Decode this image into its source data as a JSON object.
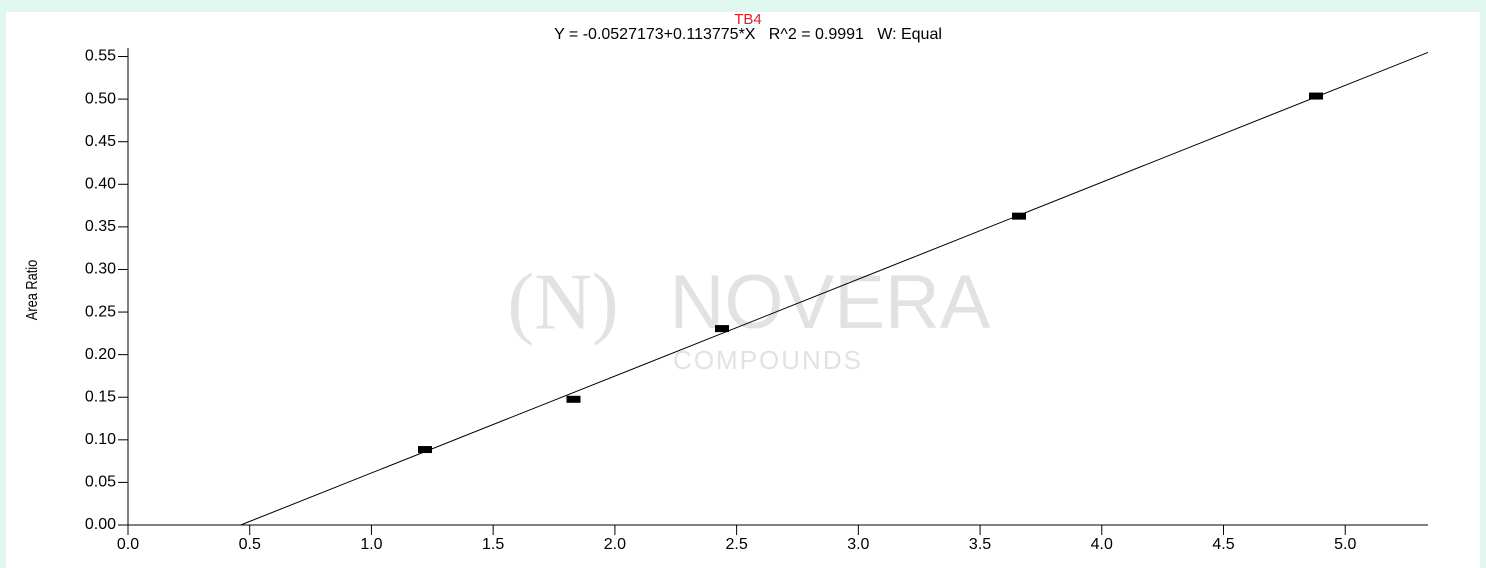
{
  "chart_data": {
    "type": "scatter",
    "title": "TB4",
    "subtitle": "Y = -0.0527173+0.113775*X   R^2 = 0.9991   W: Equal",
    "y_label": "Area Ratio",
    "watermark": {
      "mark": "(N)",
      "name": "NOVERA",
      "sub": "COMPOUNDS"
    },
    "x": [
      1.22,
      1.83,
      2.44,
      3.66,
      4.88
    ],
    "values": [
      0.088,
      0.147,
      0.23,
      0.362,
      0.503
    ],
    "color": "#000000",
    "fit_line": {
      "x": [
        0.463,
        5.34
      ],
      "values": [
        0,
        0.5548
      ],
      "color": "#000000"
    },
    "xlim": [
      0,
      5.34
    ],
    "ylim": [
      0,
      0.56
    ],
    "xticks": [
      {
        "value": 0,
        "label": "0.0"
      },
      {
        "value": 0.5,
        "label": "0.5"
      },
      {
        "value": 1,
        "label": "1.0"
      },
      {
        "value": 1.5,
        "label": "1.5"
      },
      {
        "value": 2,
        "label": "2.0"
      },
      {
        "value": 2.5,
        "label": "2.5"
      },
      {
        "value": 3,
        "label": "3.0"
      },
      {
        "value": 3.5,
        "label": "3.5"
      },
      {
        "value": 4,
        "label": "4.0"
      },
      {
        "value": 4.5,
        "label": "4.5"
      },
      {
        "value": 5,
        "label": "5.0"
      }
    ],
    "yticks": [
      {
        "value": 0,
        "label": "0.00"
      },
      {
        "value": 0.05,
        "label": "0.05"
      },
      {
        "value": 0.1,
        "label": "0.10"
      },
      {
        "value": 0.15,
        "label": "0.15"
      },
      {
        "value": 0.2,
        "label": "0.20"
      },
      {
        "value": 0.25,
        "label": "0.25"
      },
      {
        "value": 0.3,
        "label": "0.30"
      },
      {
        "value": 0.35,
        "label": "0.35"
      },
      {
        "value": 0.4,
        "label": "0.40"
      },
      {
        "value": 0.45,
        "label": "0.45"
      },
      {
        "value": 0.5,
        "label": "0.50"
      },
      {
        "value": 0.55,
        "label": "0.55"
      }
    ],
    "grid": false
  }
}
